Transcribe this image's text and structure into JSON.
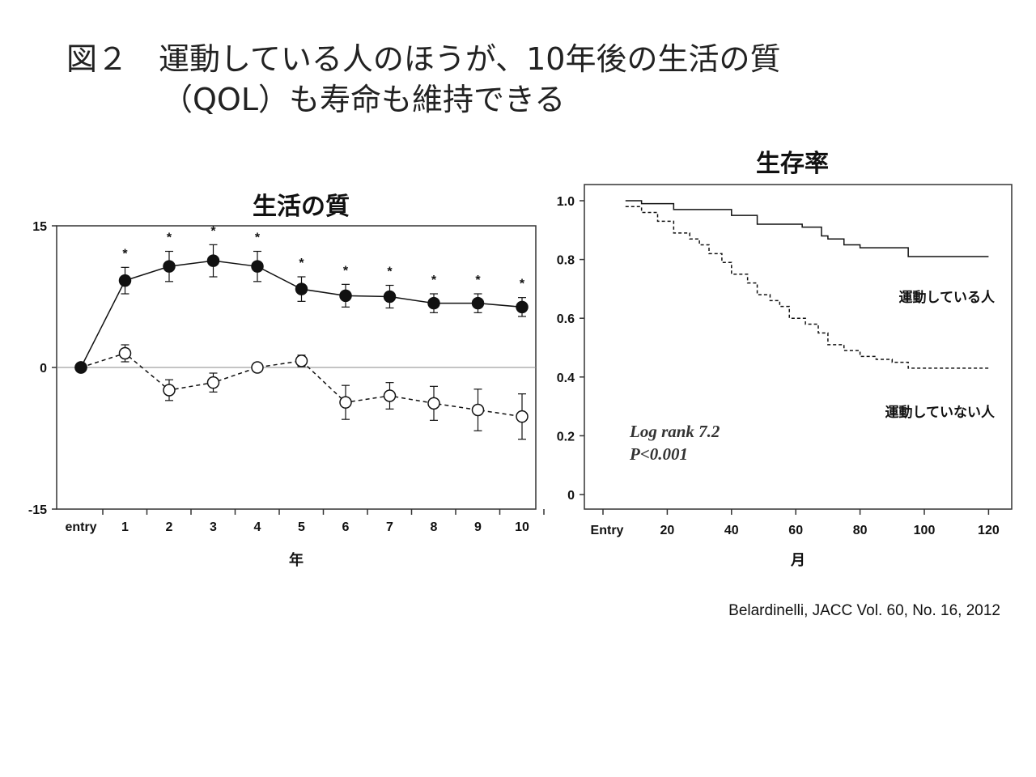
{
  "page": {
    "title_line1": "図２　運動している人のほうが、10年後の生活の質",
    "title_line2": "（QOL）も寿命も維持できる",
    "citation": "Belardinelli, JACC Vol. 60, No. 16, 2012"
  },
  "colors": {
    "line": "#111111",
    "axis": "#333333",
    "zero_line": "#888888"
  },
  "chart_data": [
    {
      "type": "line",
      "title": "生活の質",
      "xlabel": "年",
      "ylabel": "",
      "categories": [
        "entry",
        "1",
        "2",
        "3",
        "4",
        "5",
        "6",
        "7",
        "8",
        "9",
        "10"
      ],
      "y_ticks": [
        "15",
        "0",
        "-15"
      ],
      "ylim": [
        -15,
        15
      ],
      "grid": false,
      "reference_line": 0,
      "significance_marks": [
        "",
        "*",
        "*",
        "*",
        "*",
        "*",
        "*",
        "*",
        "*",
        "*",
        "*"
      ],
      "series": [
        {
          "style": "solid line, filled circles",
          "values": [
            0,
            9.2,
            10.7,
            11.3,
            10.7,
            8.3,
            7.6,
            7.5,
            6.8,
            6.8,
            6.4
          ],
          "error": [
            0,
            1.4,
            1.6,
            1.7,
            1.6,
            1.3,
            1.2,
            1.2,
            1.0,
            1.0,
            1.0
          ]
        },
        {
          "style": "dashed line, open circles",
          "values": [
            0,
            1.5,
            -2.4,
            -1.6,
            0,
            0.7,
            -3.7,
            -3.0,
            -3.8,
            -4.5,
            -5.2
          ],
          "error": [
            0,
            0.9,
            1.1,
            1.0,
            0.4,
            0.6,
            1.8,
            1.4,
            1.8,
            2.2,
            2.4
          ]
        }
      ]
    },
    {
      "type": "line",
      "title": "生存率",
      "xlabel": "月",
      "ylabel": "",
      "x_ticks": [
        "Entry",
        "20",
        "40",
        "60",
        "80",
        "100",
        "120"
      ],
      "y_ticks": [
        "1.0",
        "0.8",
        "0.6",
        "0.4",
        "0.2",
        "0"
      ],
      "xlim": [
        0,
        120
      ],
      "ylim": [
        0,
        1.0
      ],
      "grid": false,
      "annotations": [
        "Log rank 7.2",
        "P<0.001"
      ],
      "series": [
        {
          "name": "運動している人",
          "style": "solid step line",
          "x": [
            7,
            12,
            22,
            40,
            48,
            62,
            68,
            70,
            75,
            80,
            95,
            120
          ],
          "y": [
            1.0,
            0.99,
            0.97,
            0.95,
            0.92,
            0.91,
            0.88,
            0.87,
            0.85,
            0.84,
            0.81,
            0.81
          ]
        },
        {
          "name": "運動していない人",
          "style": "dashed step line",
          "x": [
            7,
            12,
            17,
            22,
            27,
            30,
            33,
            37,
            40,
            45,
            48,
            52,
            55,
            58,
            63,
            67,
            70,
            75,
            80,
            85,
            90,
            95,
            120
          ],
          "y": [
            0.98,
            0.96,
            0.93,
            0.89,
            0.87,
            0.85,
            0.82,
            0.79,
            0.75,
            0.72,
            0.68,
            0.66,
            0.64,
            0.6,
            0.58,
            0.55,
            0.51,
            0.49,
            0.47,
            0.46,
            0.45,
            0.43,
            0.43
          ]
        }
      ]
    }
  ]
}
